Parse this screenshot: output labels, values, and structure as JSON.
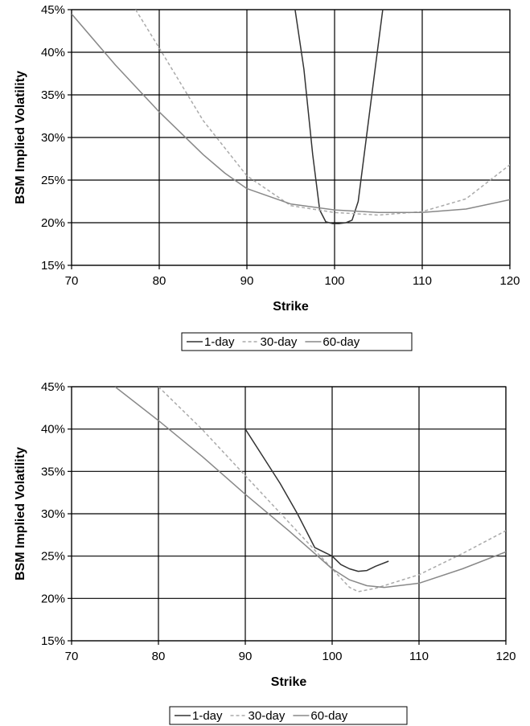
{
  "chart_data": [
    {
      "type": "line",
      "xlabel": "Strike",
      "ylabel": "BSM Implied Volatility",
      "xlim": [
        70,
        120
      ],
      "ylim": [
        0.15,
        0.45
      ],
      "x_ticks": [
        70,
        80,
        90,
        100,
        110,
        120
      ],
      "x_tick_labels": [
        "70",
        "80",
        "90",
        "100",
        "110",
        "120"
      ],
      "y_ticks": [
        0.15,
        0.2,
        0.25,
        0.3,
        0.35,
        0.4,
        0.45
      ],
      "y_tick_labels": [
        "15%",
        "20%",
        "25%",
        "30%",
        "35%",
        "40%",
        "45%"
      ],
      "grid": true,
      "legend_position": "bottom",
      "series": [
        {
          "name": "1-day",
          "color": "#333333",
          "dash": "solid",
          "points": [
            [
              95.5,
              0.45
            ],
            [
              96.5,
              0.38
            ],
            [
              97.5,
              0.28
            ],
            [
              98.3,
              0.215
            ],
            [
              99.0,
              0.201
            ],
            [
              99.8,
              0.199
            ],
            [
              100.5,
              0.199
            ],
            [
              101.3,
              0.2
            ],
            [
              102.0,
              0.203
            ],
            [
              102.7,
              0.225
            ],
            [
              103.5,
              0.29
            ],
            [
              104.5,
              0.37
            ],
            [
              105.5,
              0.45
            ]
          ]
        },
        {
          "name": "30-day",
          "color": "#aaaaaa",
          "dash": "dashed",
          "points": [
            [
              77.3,
              0.45
            ],
            [
              80,
              0.405
            ],
            [
              85,
              0.32
            ],
            [
              90,
              0.255
            ],
            [
              95,
              0.22
            ],
            [
              100,
              0.212
            ],
            [
              105,
              0.209
            ],
            [
              110,
              0.213
            ],
            [
              115,
              0.228
            ],
            [
              120,
              0.268
            ]
          ]
        },
        {
          "name": "60-day",
          "color": "#888888",
          "dash": "solid",
          "points": [
            [
              70,
              0.445
            ],
            [
              75,
              0.385
            ],
            [
              80,
              0.33
            ],
            [
              85,
              0.28
            ],
            [
              87.5,
              0.258
            ],
            [
              90,
              0.24
            ],
            [
              95,
              0.222
            ],
            [
              100,
              0.215
            ],
            [
              105,
              0.212
            ],
            [
              110,
              0.212
            ],
            [
              115,
              0.216
            ],
            [
              120,
              0.227
            ]
          ]
        }
      ]
    },
    {
      "type": "line",
      "xlabel": "Strike",
      "ylabel": "BSM Implied Volatility",
      "xlim": [
        70,
        120
      ],
      "ylim": [
        0.15,
        0.45
      ],
      "x_ticks": [
        70,
        80,
        90,
        100,
        110,
        120
      ],
      "x_tick_labels": [
        "70",
        "80",
        "90",
        "100",
        "110",
        "120"
      ],
      "y_ticks": [
        0.15,
        0.2,
        0.25,
        0.3,
        0.35,
        0.4,
        0.45
      ],
      "y_tick_labels": [
        "15%",
        "20%",
        "25%",
        "30%",
        "35%",
        "40%",
        "45%"
      ],
      "grid": true,
      "legend_position": "bottom",
      "series": [
        {
          "name": "1-day",
          "color": "#333333",
          "dash": "solid",
          "points": [
            [
              90,
              0.4
            ],
            [
              92,
              0.368
            ],
            [
              94,
              0.336
            ],
            [
              96,
              0.3
            ],
            [
              98,
              0.26
            ],
            [
              100,
              0.25
            ],
            [
              101,
              0.24
            ],
            [
              102,
              0.235
            ],
            [
              103,
              0.232
            ],
            [
              104,
              0.233
            ],
            [
              105,
              0.238
            ],
            [
              106.5,
              0.244
            ]
          ]
        },
        {
          "name": "30-day",
          "color": "#aaaaaa",
          "dash": "dashed",
          "points": [
            [
              80,
              0.45
            ],
            [
              85,
              0.4
            ],
            [
              90,
              0.345
            ],
            [
              95,
              0.29
            ],
            [
              100,
              0.235
            ],
            [
              102,
              0.213
            ],
            [
              103,
              0.208
            ],
            [
              105,
              0.212
            ],
            [
              110,
              0.228
            ],
            [
              115,
              0.253
            ],
            [
              120,
              0.28
            ]
          ]
        },
        {
          "name": "60-day",
          "color": "#888888",
          "dash": "solid",
          "points": [
            [
              75,
              0.45
            ],
            [
              80,
              0.41
            ],
            [
              85,
              0.368
            ],
            [
              90,
              0.323
            ],
            [
              95,
              0.28
            ],
            [
              100,
              0.235
            ],
            [
              102,
              0.222
            ],
            [
              104,
              0.215
            ],
            [
              106,
              0.213
            ],
            [
              110,
              0.218
            ],
            [
              115,
              0.235
            ],
            [
              120,
              0.255
            ]
          ]
        }
      ]
    }
  ]
}
